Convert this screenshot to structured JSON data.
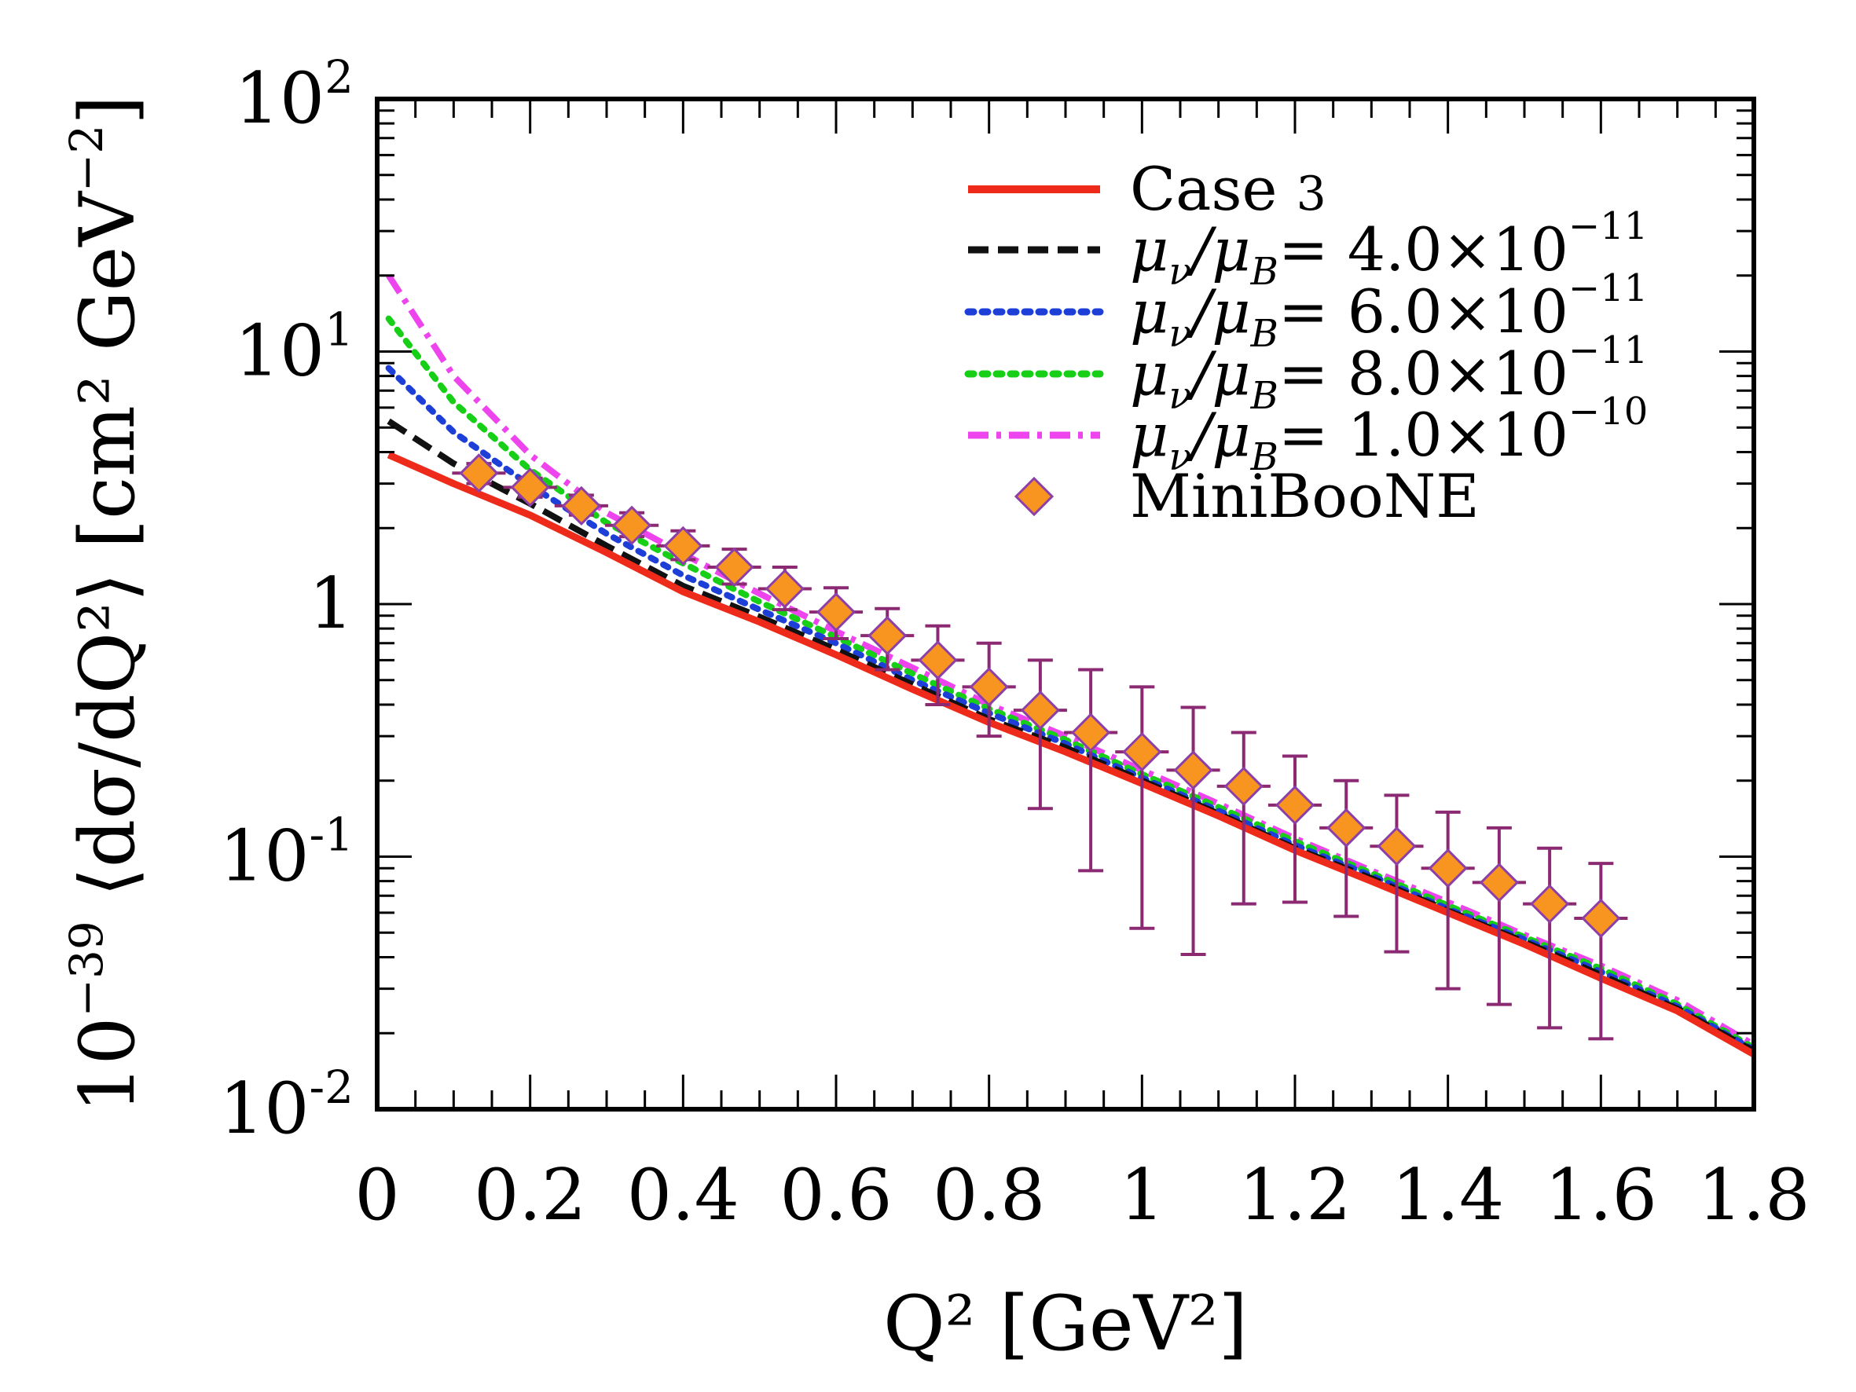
{
  "chart_data": {
    "type": "line",
    "xlabel": "Q² [GeV²]",
    "ylabel": {
      "prefix": "10",
      "prefix_exp": "−39",
      "main": " ⟨dσ/dQ²⟩ [cm² GeV",
      "unit_exp": "−2",
      "close": "]"
    },
    "xlim": [
      0,
      1.8
    ],
    "ylim": [
      0.01,
      100
    ],
    "y_scale": "log",
    "grid": false,
    "legend_position": "top-right",
    "x_ticks": [
      "0",
      "0.2",
      "0.4",
      "0.6",
      "0.8",
      "1",
      "1.2",
      "1.4",
      "1.6",
      "1.8"
    ],
    "y_ticks": [
      {
        "value": 0.01,
        "base": "10",
        "exp": "-2"
      },
      {
        "value": 0.1,
        "base": "10",
        "exp": "-1"
      },
      {
        "value": 1,
        "base": "1",
        "exp": ""
      },
      {
        "value": 10,
        "base": "10",
        "exp": "1"
      },
      {
        "value": 100,
        "base": "10",
        "exp": "2"
      }
    ],
    "series": [
      {
        "name": "Case 3",
        "legend_text": {
          "main": "Case ",
          "tail": "3"
        },
        "color": "#ee2a1b",
        "style": "solid",
        "x": [
          0.015,
          0.1,
          0.2,
          0.3,
          0.4,
          0.5,
          0.6,
          0.7,
          0.8,
          0.9,
          1.0,
          1.1,
          1.2,
          1.3,
          1.4,
          1.5,
          1.6,
          1.7,
          1.8
        ],
        "y": [
          3.9,
          3.0,
          2.25,
          1.6,
          1.12,
          0.85,
          0.63,
          0.46,
          0.34,
          0.26,
          0.195,
          0.145,
          0.106,
          0.08,
          0.06,
          0.045,
          0.033,
          0.0245,
          0.0165
        ]
      },
      {
        "name": "μν/μB= 4.0×10−11",
        "legend_text": {
          "main": "μ",
          "sub": "ν",
          "mid": "/μ",
          "sub2": "B",
          "tail": "= 4.0×10",
          "exp": "−11"
        },
        "color": "#111111",
        "style": "dashed",
        "x": [
          0.015,
          0.1,
          0.2,
          0.3,
          0.4,
          0.5,
          0.6,
          0.7,
          0.8,
          0.9,
          1.0,
          1.1,
          1.2,
          1.3,
          1.4,
          1.5,
          1.6,
          1.7,
          1.8
        ],
        "y": [
          5.3,
          3.6,
          2.5,
          1.7,
          1.18,
          0.89,
          0.66,
          0.48,
          0.35,
          0.27,
          0.2,
          0.148,
          0.108,
          0.082,
          0.061,
          0.046,
          0.034,
          0.025,
          0.017
        ]
      },
      {
        "name": "μν/μB= 6.0×10−11",
        "legend_text": {
          "main": "μ",
          "sub": "ν",
          "mid": "/μ",
          "sub2": "B",
          "tail": "= 6.0×10",
          "exp": "−11"
        },
        "color": "#1d3fd8",
        "style": "dotted",
        "x": [
          0.015,
          0.1,
          0.2,
          0.3,
          0.4,
          0.5,
          0.6,
          0.7,
          0.8,
          0.9,
          1.0,
          1.1,
          1.2,
          1.3,
          1.4,
          1.5,
          1.6,
          1.7,
          1.8
        ],
        "y": [
          8.6,
          4.8,
          2.95,
          1.9,
          1.3,
          0.95,
          0.7,
          0.5,
          0.37,
          0.28,
          0.205,
          0.152,
          0.111,
          0.084,
          0.062,
          0.047,
          0.035,
          0.0255,
          0.0172
        ]
      },
      {
        "name": "μν/μB= 8.0×10−11",
        "legend_text": {
          "main": "μ",
          "sub": "ν",
          "mid": "/μ",
          "sub2": "B",
          "tail": "= 8.0×10",
          "exp": "−11"
        },
        "color": "#18cf18",
        "style": "dotted",
        "x": [
          0.015,
          0.1,
          0.2,
          0.3,
          0.4,
          0.5,
          0.6,
          0.7,
          0.8,
          0.9,
          1.0,
          1.1,
          1.2,
          1.3,
          1.4,
          1.5,
          1.6,
          1.7,
          1.8
        ],
        "y": [
          13.5,
          6.3,
          3.4,
          2.1,
          1.45,
          1.02,
          0.74,
          0.53,
          0.385,
          0.29,
          0.212,
          0.157,
          0.115,
          0.086,
          0.064,
          0.048,
          0.036,
          0.026,
          0.0175
        ]
      },
      {
        "name": "μν/μB= 1.0×10−10",
        "legend_text": {
          "main": "μ",
          "sub": "ν",
          "mid": "/μ",
          "sub2": "B",
          "tail": "= 1.0×10",
          "exp": "−10"
        },
        "color": "#ee44ee",
        "style": "dashdot",
        "x": [
          0.015,
          0.1,
          0.2,
          0.3,
          0.4,
          0.5,
          0.6,
          0.7,
          0.8,
          0.9,
          1.0,
          1.1,
          1.2,
          1.3,
          1.4,
          1.5,
          1.6,
          1.7,
          1.8
        ],
        "y": [
          20.0,
          8.0,
          3.9,
          2.3,
          1.58,
          1.1,
          0.78,
          0.56,
          0.4,
          0.3,
          0.22,
          0.162,
          0.118,
          0.088,
          0.066,
          0.049,
          0.037,
          0.027,
          0.018
        ]
      }
    ],
    "data_series": {
      "name": "MiniBooNE",
      "marker": "diamond",
      "marker_color": "#f79520",
      "marker_edge": "#8e3fa7",
      "error_color": "#8b2a72",
      "x_halfwidth": 0.035,
      "points": [
        {
          "x": 0.133,
          "y": 3.3,
          "lo": 3.0,
          "hi": 3.6
        },
        {
          "x": 0.2,
          "y": 2.9,
          "lo": 2.65,
          "hi": 3.15
        },
        {
          "x": 0.267,
          "y": 2.45,
          "lo": 2.25,
          "hi": 2.7
        },
        {
          "x": 0.333,
          "y": 2.05,
          "lo": 1.85,
          "hi": 2.3
        },
        {
          "x": 0.4,
          "y": 1.7,
          "lo": 1.5,
          "hi": 1.95
        },
        {
          "x": 0.467,
          "y": 1.4,
          "lo": 1.2,
          "hi": 1.65
        },
        {
          "x": 0.533,
          "y": 1.15,
          "lo": 0.95,
          "hi": 1.4
        },
        {
          "x": 0.6,
          "y": 0.93,
          "lo": 0.73,
          "hi": 1.16
        },
        {
          "x": 0.667,
          "y": 0.75,
          "lo": 0.55,
          "hi": 0.96
        },
        {
          "x": 0.733,
          "y": 0.6,
          "lo": 0.4,
          "hi": 0.82
        },
        {
          "x": 0.8,
          "y": 0.47,
          "lo": 0.3,
          "hi": 0.7
        },
        {
          "x": 0.867,
          "y": 0.38,
          "lo": 0.155,
          "hi": 0.6
        },
        {
          "x": 0.933,
          "y": 0.31,
          "lo": 0.088,
          "hi": 0.55
        },
        {
          "x": 1.0,
          "y": 0.26,
          "lo": 0.052,
          "hi": 0.47
        },
        {
          "x": 1.067,
          "y": 0.22,
          "lo": 0.041,
          "hi": 0.39
        },
        {
          "x": 1.133,
          "y": 0.19,
          "lo": 0.065,
          "hi": 0.31
        },
        {
          "x": 1.2,
          "y": 0.16,
          "lo": 0.066,
          "hi": 0.25
        },
        {
          "x": 1.267,
          "y": 0.13,
          "lo": 0.058,
          "hi": 0.2
        },
        {
          "x": 1.333,
          "y": 0.11,
          "lo": 0.042,
          "hi": 0.175
        },
        {
          "x": 1.4,
          "y": 0.09,
          "lo": 0.03,
          "hi": 0.15
        },
        {
          "x": 1.467,
          "y": 0.079,
          "lo": 0.026,
          "hi": 0.13
        },
        {
          "x": 1.533,
          "y": 0.065,
          "lo": 0.021,
          "hi": 0.108
        },
        {
          "x": 1.6,
          "y": 0.057,
          "lo": 0.019,
          "hi": 0.094
        }
      ]
    }
  }
}
